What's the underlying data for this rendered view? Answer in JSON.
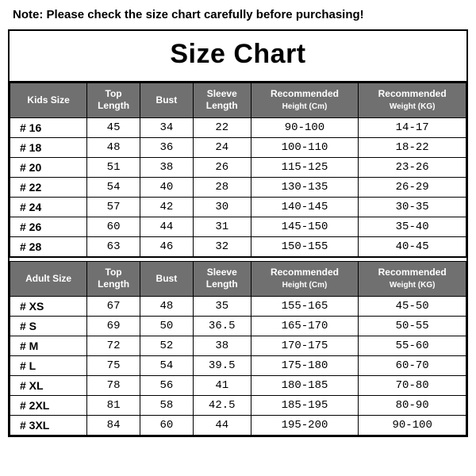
{
  "note": "Note: Please check the size chart carefully before purchasing!",
  "title": "Size Chart",
  "colors": {
    "header_bg": "#707070",
    "header_text": "#ffffff",
    "border": "#000000",
    "background": "#ffffff",
    "note_text": "#000000"
  },
  "typography": {
    "title_fontsize": 34,
    "header_fontsize": 12,
    "cell_fontsize": 14,
    "note_fontsize": 15,
    "cell_font": "Courier New"
  },
  "columns_kids": {
    "c1": "Kids Size",
    "c2": "Top Length",
    "c3": "Bust",
    "c4": "Sleeve Length",
    "c5_main": "Recommended",
    "c5_sub": "Height (Cm)",
    "c6_main": "Recommended",
    "c6_sub": "Weight (KG)"
  },
  "columns_adult": {
    "c1": "Adult Size",
    "c2": "Top Length",
    "c3": "Bust",
    "c4": "Sleeve Length",
    "c5_main": "Recommended",
    "c5_sub": "Height (Cm)",
    "c6_main": "Recommended",
    "c6_sub": "Weight (KG)"
  },
  "kids_rows": [
    {
      "size": "# 16",
      "top": "45",
      "bust": "34",
      "sleeve": "22",
      "height": "90-100",
      "weight": "14-17"
    },
    {
      "size": "# 18",
      "top": "48",
      "bust": "36",
      "sleeve": "24",
      "height": "100-110",
      "weight": "18-22"
    },
    {
      "size": "# 20",
      "top": "51",
      "bust": "38",
      "sleeve": "26",
      "height": "115-125",
      "weight": "23-26"
    },
    {
      "size": "# 22",
      "top": "54",
      "bust": "40",
      "sleeve": "28",
      "height": "130-135",
      "weight": "26-29"
    },
    {
      "size": "# 24",
      "top": "57",
      "bust": "42",
      "sleeve": "30",
      "height": "140-145",
      "weight": "30-35"
    },
    {
      "size": "# 26",
      "top": "60",
      "bust": "44",
      "sleeve": "31",
      "height": "145-150",
      "weight": "35-40"
    },
    {
      "size": "# 28",
      "top": "63",
      "bust": "46",
      "sleeve": "32",
      "height": "150-155",
      "weight": "40-45"
    }
  ],
  "adult_rows": [
    {
      "size": "# XS",
      "top": "67",
      "bust": "48",
      "sleeve": "35",
      "height": "155-165",
      "weight": "45-50"
    },
    {
      "size": "# S",
      "top": "69",
      "bust": "50",
      "sleeve": "36.5",
      "height": "165-170",
      "weight": "50-55"
    },
    {
      "size": "# M",
      "top": "72",
      "bust": "52",
      "sleeve": "38",
      "height": "170-175",
      "weight": "55-60"
    },
    {
      "size": "# L",
      "top": "75",
      "bust": "54",
      "sleeve": "39.5",
      "height": "175-180",
      "weight": "60-70"
    },
    {
      "size": "# XL",
      "top": "78",
      "bust": "56",
      "sleeve": "41",
      "height": "180-185",
      "weight": "70-80"
    },
    {
      "size": "# 2XL",
      "top": "81",
      "bust": "58",
      "sleeve": "42.5",
      "height": "185-195",
      "weight": "80-90"
    },
    {
      "size": "# 3XL",
      "top": "84",
      "bust": "60",
      "sleeve": "44",
      "height": "195-200",
      "weight": "90-100"
    }
  ]
}
